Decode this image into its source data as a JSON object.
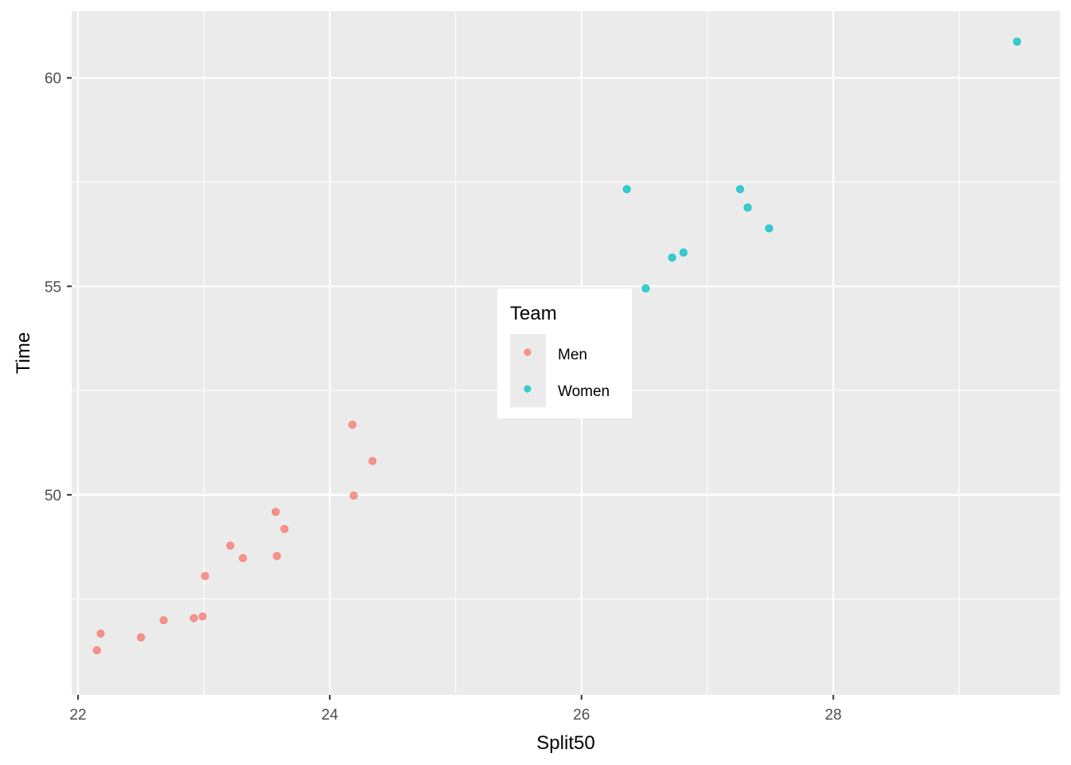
{
  "chart_data": {
    "type": "scatter",
    "xlabel": "Split50",
    "ylabel": "Time",
    "xlim": [
      21.95,
      29.8
    ],
    "ylim": [
      45.2,
      61.6
    ],
    "x_ticks_major": [
      22,
      24,
      26,
      28
    ],
    "x_tick_labels": [
      "22",
      "24",
      "26",
      "28"
    ],
    "y_ticks_major": [
      50,
      55,
      60
    ],
    "y_tick_labels": [
      "50",
      "55",
      "60"
    ],
    "grid": true,
    "legend": {
      "title": "Team",
      "placement": "inside-center",
      "entries": [
        "Men",
        "Women"
      ]
    },
    "series": [
      {
        "name": "Men",
        "color": "#F8766D",
        "points": [
          {
            "x": 22.15,
            "y": 46.27
          },
          {
            "x": 22.18,
            "y": 46.67
          },
          {
            "x": 22.5,
            "y": 46.58
          },
          {
            "x": 22.68,
            "y": 46.99
          },
          {
            "x": 22.92,
            "y": 47.04
          },
          {
            "x": 22.99,
            "y": 47.08
          },
          {
            "x": 23.01,
            "y": 48.05
          },
          {
            "x": 23.21,
            "y": 48.78
          },
          {
            "x": 23.31,
            "y": 48.48
          },
          {
            "x": 23.57,
            "y": 49.59
          },
          {
            "x": 23.58,
            "y": 48.53
          },
          {
            "x": 23.64,
            "y": 49.18
          },
          {
            "x": 24.18,
            "y": 51.68
          },
          {
            "x": 24.19,
            "y": 49.98
          },
          {
            "x": 24.34,
            "y": 50.81
          }
        ]
      },
      {
        "name": "Women",
        "color": "#00BFC4",
        "points": [
          {
            "x": 26.36,
            "y": 57.33
          },
          {
            "x": 26.51,
            "y": 54.95
          },
          {
            "x": 26.72,
            "y": 55.69
          },
          {
            "x": 26.81,
            "y": 55.81
          },
          {
            "x": 27.26,
            "y": 57.33
          },
          {
            "x": 27.32,
            "y": 56.89
          },
          {
            "x": 27.49,
            "y": 56.39
          },
          {
            "x": 29.46,
            "y": 60.87
          }
        ]
      }
    ]
  }
}
